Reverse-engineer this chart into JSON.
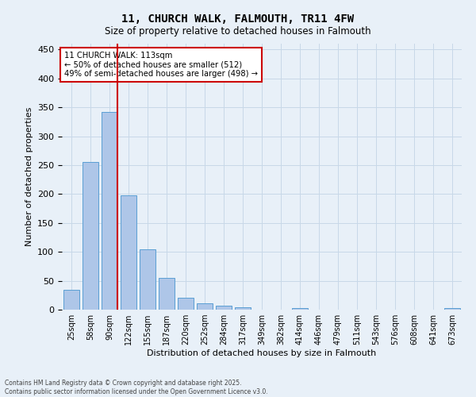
{
  "title": "11, CHURCH WALK, FALMOUTH, TR11 4FW",
  "subtitle": "Size of property relative to detached houses in Falmouth",
  "xlabel": "Distribution of detached houses by size in Falmouth",
  "ylabel": "Number of detached properties",
  "bar_labels": [
    "25sqm",
    "58sqm",
    "90sqm",
    "122sqm",
    "155sqm",
    "187sqm",
    "220sqm",
    "252sqm",
    "284sqm",
    "317sqm",
    "349sqm",
    "382sqm",
    "414sqm",
    "446sqm",
    "479sqm",
    "511sqm",
    "543sqm",
    "576sqm",
    "608sqm",
    "641sqm",
    "673sqm"
  ],
  "bar_values": [
    35,
    255,
    342,
    198,
    104,
    55,
    20,
    11,
    7,
    4,
    0,
    0,
    3,
    0,
    0,
    0,
    0,
    0,
    0,
    0,
    3
  ],
  "bar_color": "#aec6e8",
  "bar_edge_color": "#5a9fd4",
  "vline_color": "#cc0000",
  "annotation_line1": "11 CHURCH WALK: 113sqm",
  "annotation_line2": "← 50% of detached houses are smaller (512)",
  "annotation_line3": "49% of semi-detached houses are larger (498) →",
  "annotation_box_color": "#cc0000",
  "annotation_bg": "#ffffff",
  "ylim": [
    0,
    460
  ],
  "yticks": [
    0,
    50,
    100,
    150,
    200,
    250,
    300,
    350,
    400,
    450
  ],
  "grid_color": "#c8d8e8",
  "bg_color": "#e8f0f8",
  "footer": "Contains HM Land Registry data © Crown copyright and database right 2025.\nContains public sector information licensed under the Open Government Licence v3.0."
}
